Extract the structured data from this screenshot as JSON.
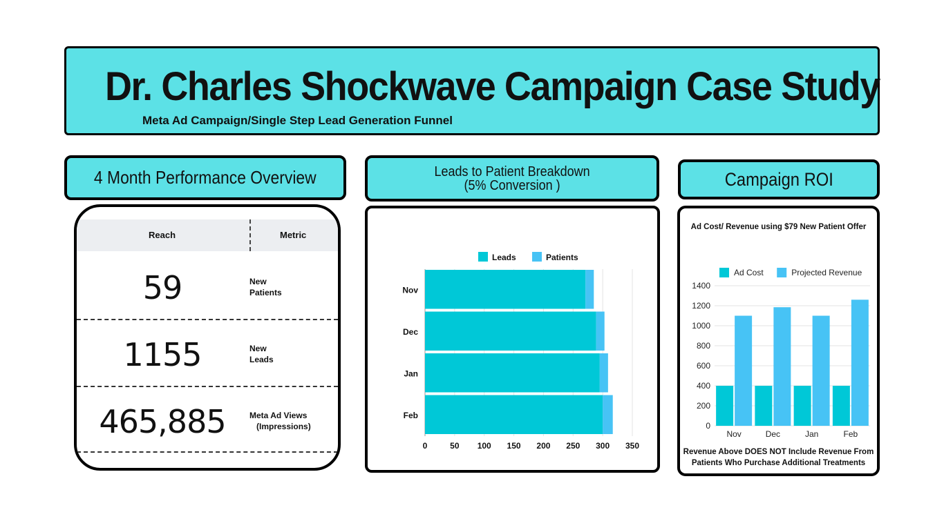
{
  "header": {
    "title": "Dr. Charles Shockwave Campaign Case Study",
    "subtitle": "Meta Ad Campaign/Single Step Lead Generation Funnel"
  },
  "overview": {
    "title": "4 Month Performance Overview",
    "columns": [
      "Reach",
      "Metric"
    ],
    "rows": [
      {
        "value": "59",
        "label": "New\nPatients"
      },
      {
        "value": "1155",
        "label": "New\nLeads"
      },
      {
        "value": "465,885",
        "label": "Meta Ad Views\n   (Impressions)"
      }
    ]
  },
  "leads_section": {
    "title_line1": "Leads to Patient Breakdown",
    "title_line2": "(5% Conversion )"
  },
  "roi_section": {
    "title": "Campaign ROI",
    "caption": "Ad Cost/ Revenue using $79 New Patient Offer",
    "footnote": "Revenue Above DOES NOT Include Revenue From Patients Who Purchase Additional Treatments"
  },
  "chart_data": [
    {
      "type": "bar",
      "orientation": "horizontal",
      "stacked": true,
      "categories": [
        "Nov",
        "Dec",
        "Jan",
        "Feb"
      ],
      "series": [
        {
          "name": "Leads",
          "values": [
            271,
            289,
            295,
            300
          ],
          "color": "#00c8d7"
        },
        {
          "name": "Patients",
          "values": [
            14,
            14,
            14,
            17
          ],
          "color": "#47c3f5"
        }
      ],
      "xlim": [
        0,
        350
      ],
      "xticks": [
        0,
        50,
        100,
        150,
        200,
        250,
        300,
        350
      ],
      "legend": "top",
      "grid": true
    },
    {
      "type": "bar",
      "title": "Ad Cost/ Revenue using $79 New Patient Offer",
      "categories": [
        "Nov",
        "Dec",
        "Jan",
        "Feb"
      ],
      "series": [
        {
          "name": "Ad Cost",
          "values": [
            400,
            400,
            400,
            400
          ],
          "color": "#00c8d7"
        },
        {
          "name": "Projected Revenue",
          "values": [
            1100,
            1185,
            1100,
            1260
          ],
          "color": "#47c3f5"
        }
      ],
      "ylim": [
        0,
        1400
      ],
      "yticks": [
        0,
        200,
        400,
        600,
        800,
        1000,
        1200,
        1400
      ],
      "legend": "top",
      "grid": true
    }
  ]
}
